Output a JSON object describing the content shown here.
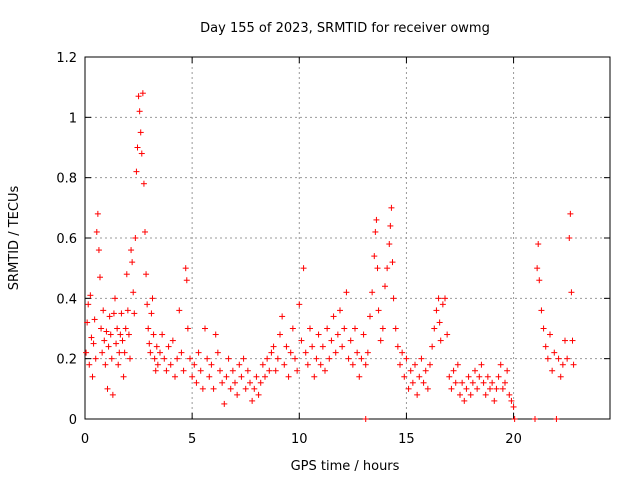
{
  "chart_data": {
    "type": "scatter",
    "title": "Day 155 of 2023, SRMTID for receiver owmg",
    "xlabel": "GPS time / hours",
    "ylabel": "SRMTID / TECUs",
    "xlim": [
      0,
      24.5
    ],
    "ylim": [
      0,
      1.2
    ],
    "grid": true,
    "marker": "+",
    "color": "#ff0000",
    "xticks": [
      0,
      5,
      10,
      15,
      20
    ],
    "xtick_labels": [
      "0",
      "5",
      "10",
      "15",
      "20"
    ],
    "yticks": [
      0,
      0.2,
      0.4,
      0.6,
      0.8,
      1.0,
      1.2
    ],
    "ytick_labels": [
      "0",
      "0.2",
      "0.4",
      "0.6",
      "0.8",
      "1",
      "1.2"
    ],
    "series": [
      {
        "name": "SRMTID",
        "points": [
          [
            0.05,
            0.22
          ],
          [
            0.1,
            0.32
          ],
          [
            0.15,
            0.38
          ],
          [
            0.2,
            0.18
          ],
          [
            0.25,
            0.41
          ],
          [
            0.3,
            0.27
          ],
          [
            0.35,
            0.14
          ],
          [
            0.4,
            0.25
          ],
          [
            0.45,
            0.33
          ],
          [
            0.5,
            0.2
          ],
          [
            0.55,
            0.62
          ],
          [
            0.6,
            0.68
          ],
          [
            0.65,
            0.56
          ],
          [
            0.7,
            0.47
          ],
          [
            0.75,
            0.3
          ],
          [
            0.8,
            0.22
          ],
          [
            0.85,
            0.36
          ],
          [
            0.9,
            0.26
          ],
          [
            0.95,
            0.18
          ],
          [
            1.0,
            0.29
          ],
          [
            1.05,
            0.1
          ],
          [
            1.1,
            0.24
          ],
          [
            1.15,
            0.34
          ],
          [
            1.2,
            0.28
          ],
          [
            1.25,
            0.2
          ],
          [
            1.3,
            0.08
          ],
          [
            1.35,
            0.35
          ],
          [
            1.4,
            0.4
          ],
          [
            1.45,
            0.25
          ],
          [
            1.5,
            0.3
          ],
          [
            1.55,
            0.18
          ],
          [
            1.6,
            0.22
          ],
          [
            1.65,
            0.28
          ],
          [
            1.7,
            0.35
          ],
          [
            1.75,
            0.26
          ],
          [
            1.8,
            0.14
          ],
          [
            1.85,
            0.22
          ],
          [
            1.9,
            0.3
          ],
          [
            1.95,
            0.48
          ],
          [
            2.0,
            0.36
          ],
          [
            2.05,
            0.28
          ],
          [
            2.1,
            0.2
          ],
          [
            2.15,
            0.56
          ],
          [
            2.2,
            0.52
          ],
          [
            2.25,
            0.42
          ],
          [
            2.3,
            0.35
          ],
          [
            2.35,
            0.6
          ],
          [
            2.4,
            0.82
          ],
          [
            2.45,
            0.9
          ],
          [
            2.5,
            1.07
          ],
          [
            2.55,
            1.02
          ],
          [
            2.6,
            0.95
          ],
          [
            2.65,
            0.88
          ],
          [
            2.7,
            1.08
          ],
          [
            2.75,
            0.78
          ],
          [
            2.8,
            0.62
          ],
          [
            2.85,
            0.48
          ],
          [
            2.9,
            0.38
          ],
          [
            2.95,
            0.3
          ],
          [
            3.0,
            0.25
          ],
          [
            3.05,
            0.22
          ],
          [
            3.1,
            0.35
          ],
          [
            3.15,
            0.4
          ],
          [
            3.2,
            0.28
          ],
          [
            3.25,
            0.2
          ],
          [
            3.3,
            0.16
          ],
          [
            3.35,
            0.24
          ],
          [
            3.4,
            0.18
          ],
          [
            3.5,
            0.22
          ],
          [
            3.6,
            0.28
          ],
          [
            3.7,
            0.2
          ],
          [
            3.8,
            0.16
          ],
          [
            3.9,
            0.24
          ],
          [
            4.0,
            0.18
          ],
          [
            4.1,
            0.26
          ],
          [
            4.2,
            0.14
          ],
          [
            4.3,
            0.2
          ],
          [
            4.4,
            0.36
          ],
          [
            4.5,
            0.22
          ],
          [
            4.6,
            0.16
          ],
          [
            4.7,
            0.5
          ],
          [
            4.75,
            0.46
          ],
          [
            4.8,
            0.3
          ],
          [
            4.9,
            0.2
          ],
          [
            5.0,
            0.14
          ],
          [
            5.1,
            0.18
          ],
          [
            5.2,
            0.12
          ],
          [
            5.3,
            0.22
          ],
          [
            5.4,
            0.16
          ],
          [
            5.5,
            0.1
          ],
          [
            5.6,
            0.3
          ],
          [
            5.7,
            0.2
          ],
          [
            5.8,
            0.14
          ],
          [
            5.9,
            0.18
          ],
          [
            6.0,
            0.1
          ],
          [
            6.1,
            0.28
          ],
          [
            6.2,
            0.22
          ],
          [
            6.3,
            0.16
          ],
          [
            6.4,
            0.12
          ],
          [
            6.5,
            0.05
          ],
          [
            6.6,
            0.14
          ],
          [
            6.7,
            0.2
          ],
          [
            6.8,
            0.1
          ],
          [
            6.9,
            0.16
          ],
          [
            7.0,
            0.12
          ],
          [
            7.1,
            0.08
          ],
          [
            7.2,
            0.18
          ],
          [
            7.3,
            0.14
          ],
          [
            7.4,
            0.2
          ],
          [
            7.5,
            0.1
          ],
          [
            7.6,
            0.16
          ],
          [
            7.7,
            0.12
          ],
          [
            7.8,
            0.06
          ],
          [
            7.9,
            0.1
          ],
          [
            8.0,
            0.14
          ],
          [
            8.1,
            0.08
          ],
          [
            8.2,
            0.12
          ],
          [
            8.3,
            0.18
          ],
          [
            8.4,
            0.14
          ],
          [
            8.5,
            0.2
          ],
          [
            8.6,
            0.16
          ],
          [
            8.7,
            0.22
          ],
          [
            8.8,
            0.24
          ],
          [
            8.9,
            0.16
          ],
          [
            9.0,
            0.2
          ],
          [
            9.1,
            0.28
          ],
          [
            9.2,
            0.34
          ],
          [
            9.3,
            0.18
          ],
          [
            9.4,
            0.24
          ],
          [
            9.5,
            0.14
          ],
          [
            9.6,
            0.22
          ],
          [
            9.7,
            0.3
          ],
          [
            9.8,
            0.2
          ],
          [
            9.9,
            0.16
          ],
          [
            10.0,
            0.38
          ],
          [
            10.1,
            0.26
          ],
          [
            10.2,
            0.5
          ],
          [
            10.3,
            0.22
          ],
          [
            10.4,
            0.18
          ],
          [
            10.5,
            0.3
          ],
          [
            10.6,
            0.24
          ],
          [
            10.7,
            0.14
          ],
          [
            10.8,
            0.2
          ],
          [
            10.9,
            0.28
          ],
          [
            11.0,
            0.18
          ],
          [
            11.1,
            0.24
          ],
          [
            11.2,
            0.16
          ],
          [
            11.3,
            0.3
          ],
          [
            11.4,
            0.2
          ],
          [
            11.5,
            0.26
          ],
          [
            11.6,
            0.34
          ],
          [
            11.7,
            0.22
          ],
          [
            11.8,
            0.28
          ],
          [
            11.9,
            0.36
          ],
          [
            12.0,
            0.24
          ],
          [
            12.1,
            0.3
          ],
          [
            12.2,
            0.42
          ],
          [
            12.3,
            0.2
          ],
          [
            12.4,
            0.26
          ],
          [
            12.5,
            0.18
          ],
          [
            12.6,
            0.3
          ],
          [
            12.7,
            0.22
          ],
          [
            12.8,
            0.14
          ],
          [
            12.9,
            0.2
          ],
          [
            13.0,
            0.28
          ],
          [
            13.1,
            0.18
          ],
          [
            13.2,
            0.22
          ],
          [
            13.3,
            0.34
          ],
          [
            13.4,
            0.42
          ],
          [
            13.5,
            0.54
          ],
          [
            13.55,
            0.62
          ],
          [
            13.6,
            0.66
          ],
          [
            13.65,
            0.5
          ],
          [
            13.7,
            0.36
          ],
          [
            13.8,
            0.26
          ],
          [
            13.9,
            0.3
          ],
          [
            14.0,
            0.44
          ],
          [
            14.1,
            0.5
          ],
          [
            14.2,
            0.58
          ],
          [
            14.25,
            0.64
          ],
          [
            14.3,
            0.7
          ],
          [
            14.35,
            0.52
          ],
          [
            14.4,
            0.4
          ],
          [
            14.5,
            0.3
          ],
          [
            14.6,
            0.24
          ],
          [
            14.7,
            0.18
          ],
          [
            14.8,
            0.22
          ],
          [
            14.9,
            0.14
          ],
          [
            15.0,
            0.2
          ],
          [
            15.1,
            0.1
          ],
          [
            15.2,
            0.16
          ],
          [
            15.3,
            0.12
          ],
          [
            15.4,
            0.18
          ],
          [
            15.5,
            0.08
          ],
          [
            15.6,
            0.14
          ],
          [
            15.7,
            0.2
          ],
          [
            15.8,
            0.12
          ],
          [
            15.9,
            0.16
          ],
          [
            16.0,
            0.1
          ],
          [
            16.1,
            0.18
          ],
          [
            16.2,
            0.24
          ],
          [
            16.3,
            0.3
          ],
          [
            16.4,
            0.36
          ],
          [
            16.5,
            0.4
          ],
          [
            16.55,
            0.32
          ],
          [
            16.6,
            0.26
          ],
          [
            16.7,
            0.38
          ],
          [
            16.8,
            0.4
          ],
          [
            16.9,
            0.28
          ],
          [
            17.0,
            0.14
          ],
          [
            17.1,
            0.1
          ],
          [
            17.2,
            0.16
          ],
          [
            17.3,
            0.12
          ],
          [
            17.4,
            0.18
          ],
          [
            17.5,
            0.08
          ],
          [
            17.6,
            0.12
          ],
          [
            17.7,
            0.06
          ],
          [
            17.8,
            0.1
          ],
          [
            17.9,
            0.14
          ],
          [
            18.0,
            0.08
          ],
          [
            18.1,
            0.12
          ],
          [
            18.2,
            0.16
          ],
          [
            18.3,
            0.1
          ],
          [
            18.4,
            0.14
          ],
          [
            18.5,
            0.18
          ],
          [
            18.6,
            0.12
          ],
          [
            18.7,
            0.08
          ],
          [
            18.8,
            0.14
          ],
          [
            18.9,
            0.1
          ],
          [
            19.0,
            0.12
          ],
          [
            19.1,
            0.06
          ],
          [
            19.2,
            0.1
          ],
          [
            19.3,
            0.14
          ],
          [
            19.4,
            0.18
          ],
          [
            19.5,
            0.1
          ],
          [
            19.6,
            0.12
          ],
          [
            19.7,
            0.16
          ],
          [
            19.8,
            0.08
          ],
          [
            19.9,
            0.06
          ],
          [
            20.0,
            0.04
          ],
          [
            20.05,
            0.0
          ],
          [
            21.0,
            0.0
          ],
          [
            21.1,
            0.5
          ],
          [
            21.15,
            0.58
          ],
          [
            21.2,
            0.46
          ],
          [
            21.3,
            0.36
          ],
          [
            21.4,
            0.3
          ],
          [
            21.5,
            0.24
          ],
          [
            21.6,
            0.2
          ],
          [
            21.7,
            0.28
          ],
          [
            21.8,
            0.16
          ],
          [
            21.9,
            0.22
          ],
          [
            22.0,
            0.0
          ],
          [
            22.1,
            0.2
          ],
          [
            22.2,
            0.14
          ],
          [
            22.3,
            0.18
          ],
          [
            22.4,
            0.26
          ],
          [
            22.5,
            0.2
          ],
          [
            22.6,
            0.6
          ],
          [
            22.65,
            0.68
          ],
          [
            22.7,
            0.42
          ],
          [
            22.75,
            0.26
          ],
          [
            22.8,
            0.18
          ],
          [
            13.1,
            0.0
          ]
        ]
      }
    ]
  }
}
